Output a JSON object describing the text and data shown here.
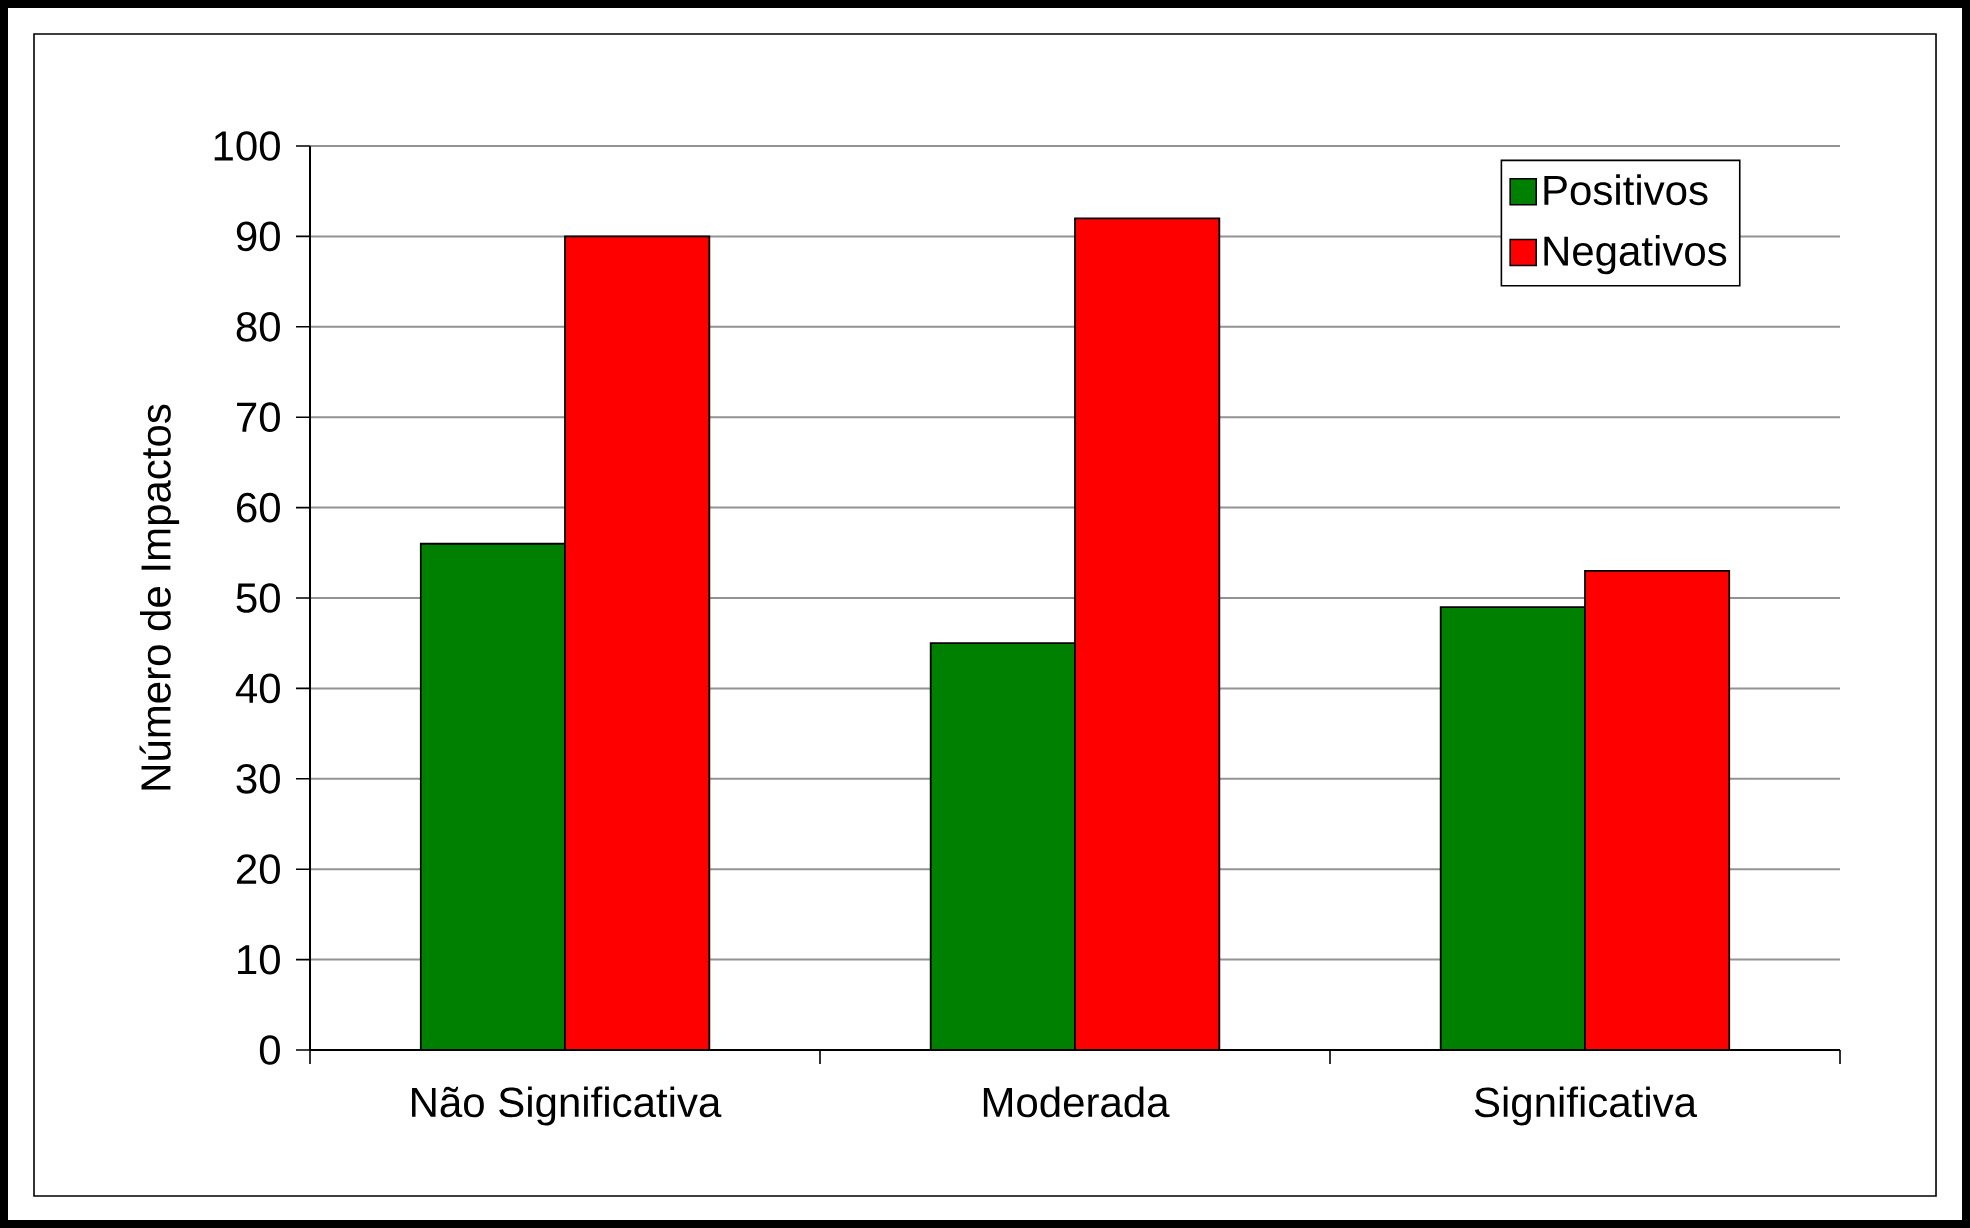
{
  "chart_data": {
    "type": "bar",
    "ylabel": "Número de Impactos",
    "categories": [
      "Não Significativa",
      "Moderada",
      "Significativa"
    ],
    "series": [
      {
        "name": "Positivos",
        "color": "#008000",
        "values": [
          56,
          45,
          49
        ]
      },
      {
        "name": "Negativos",
        "color": "#ff0000",
        "values": [
          90,
          92,
          53
        ]
      }
    ],
    "ylim": [
      0,
      100
    ],
    "yticks": [
      0,
      10,
      20,
      30,
      40,
      50,
      60,
      70,
      80,
      90,
      100
    ],
    "grid": "y",
    "legend": "top right"
  }
}
